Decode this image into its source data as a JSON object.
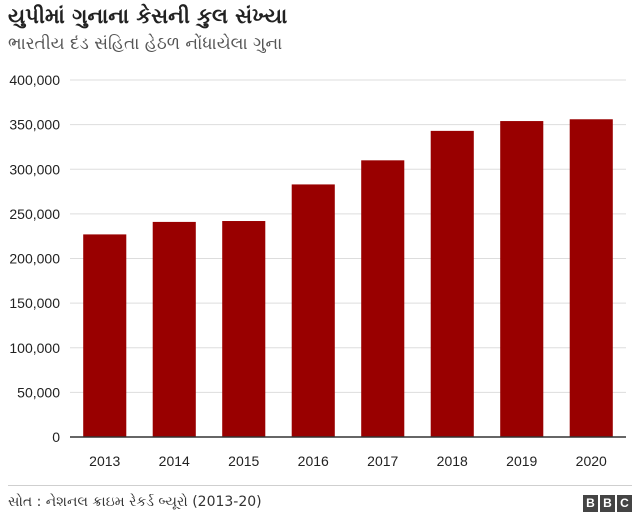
{
  "title": "યુપીમાં ગુનાના કેસની કુલ સંખ્યા",
  "subtitle": "ભારતીય દંડ સંહિતા હેઠળ નોંધાયેલા ગુના",
  "source": "સોત : નેશનલ ક્રાઇમ રેકર્ડ બ્યૂરો (2013-20)",
  "logo": [
    "B",
    "B",
    "C"
  ],
  "colors": {
    "bar": "#990000",
    "grid": "#dddddd",
    "axis": "#333333"
  },
  "chart_data": {
    "type": "bar",
    "categories": [
      "2013",
      "2014",
      "2015",
      "2016",
      "2017",
      "2018",
      "2019",
      "2020"
    ],
    "values": [
      227000,
      241000,
      242000,
      283000,
      310000,
      343000,
      354000,
      356000
    ],
    "ylim": [
      0,
      400000
    ],
    "yticks": [
      0,
      50000,
      100000,
      150000,
      200000,
      250000,
      300000,
      350000,
      400000
    ],
    "ytick_labels": [
      "0",
      "50,000",
      "100,000",
      "150,000",
      "200,000",
      "250,000",
      "300,000",
      "350,000",
      "400,000"
    ],
    "grid": true,
    "legend": false
  }
}
